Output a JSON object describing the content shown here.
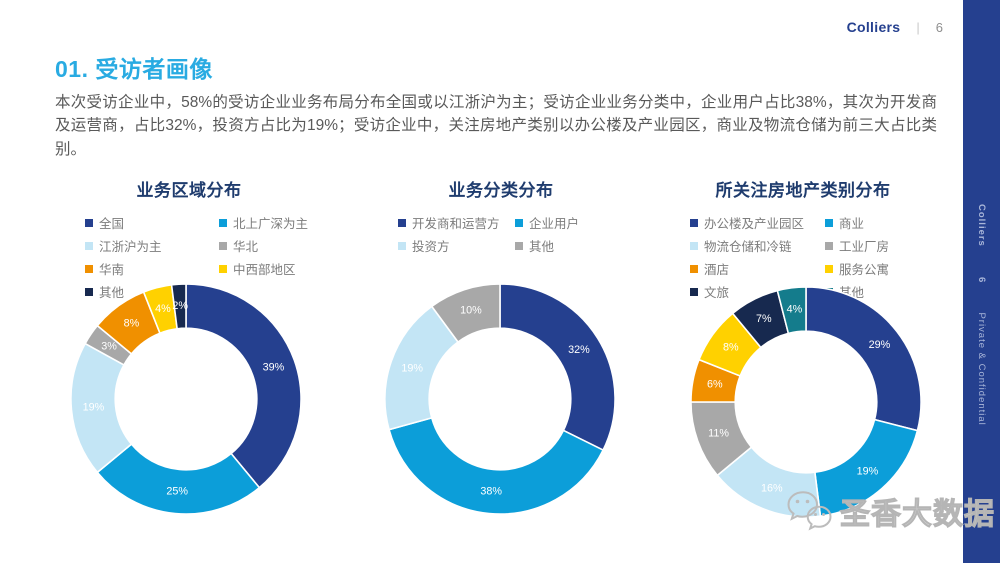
{
  "header": {
    "brand": "Colliers",
    "separator": "|",
    "page": "6"
  },
  "title": "01. 受访者画像",
  "paragraph": "本次受访企业中，58%的受访企业业务布局分布全国或以江浙沪为主；受访企业业务分类中，企业用户占比38%，其次为开发商及运营商，占比32%，投资方占比为19%；受访企业中，关注房地产类别以办公楼及产业园区，商业及物流仓储为前三大占比类别。",
  "sidebar": {
    "brand": "Colliers",
    "page": "6",
    "confidential": "Private & Confidential",
    "bg_color": "#25408F"
  },
  "watermark": {
    "icon": "wechat-icon",
    "text": "圣香大数据"
  },
  "palette": {
    "accent_title": "#29ABE2",
    "chart_title": "#1F3C6E",
    "navy": "#25408F",
    "bright_blue": "#0C9ED9",
    "light_blue": "#C3E5F5",
    "gray": "#A8A8A8",
    "orange": "#F09000",
    "yellow": "#FFD100",
    "dark_navy": "#17294F",
    "teal": "#147C8C"
  },
  "chart_data": [
    {
      "type": "pie",
      "subtype": "donut",
      "title": "业务区域分布",
      "legend_position": "top",
      "label_format": "percent",
      "series": [
        {
          "name": "全国",
          "value": 39,
          "color": "#25408F"
        },
        {
          "name": "北上广深为主",
          "value": 25,
          "color": "#0C9ED9"
        },
        {
          "name": "江浙沪为主",
          "value": 19,
          "color": "#C3E5F5"
        },
        {
          "name": "华北",
          "value": 3,
          "color": "#A8A8A8"
        },
        {
          "name": "华南",
          "value": 8,
          "color": "#F09000"
        },
        {
          "name": "中西部地区",
          "value": 4,
          "color": "#FFD100"
        },
        {
          "name": "其他",
          "value": 2,
          "color": "#17294F"
        }
      ]
    },
    {
      "type": "pie",
      "subtype": "donut",
      "title": "业务分类分布",
      "legend_position": "top",
      "label_format": "percent",
      "series": [
        {
          "name": "开发商和运营方",
          "value": 32,
          "color": "#25408F"
        },
        {
          "name": "企业用户",
          "value": 38,
          "color": "#0C9ED9"
        },
        {
          "name": "投资方",
          "value": 19,
          "color": "#C3E5F5"
        },
        {
          "name": "其他",
          "value": 10,
          "color": "#A8A8A8"
        }
      ]
    },
    {
      "type": "pie",
      "subtype": "donut",
      "title": "所关注房地产类别分布",
      "legend_position": "top",
      "label_format": "percent",
      "series": [
        {
          "name": "办公楼及产业园区",
          "value": 29,
          "color": "#25408F"
        },
        {
          "name": "商业",
          "value": 19,
          "color": "#0C9ED9"
        },
        {
          "name": "物流仓储和冷链",
          "value": 16,
          "color": "#C3E5F5"
        },
        {
          "name": "工业厂房",
          "value": 11,
          "color": "#A8A8A8"
        },
        {
          "name": "酒店",
          "value": 6,
          "color": "#F09000"
        },
        {
          "name": "服务公寓",
          "value": 8,
          "color": "#FFD100"
        },
        {
          "name": "文旅",
          "value": 7,
          "color": "#17294F"
        },
        {
          "name": "其他",
          "value": 4,
          "color": "#147C8C"
        }
      ]
    }
  ]
}
